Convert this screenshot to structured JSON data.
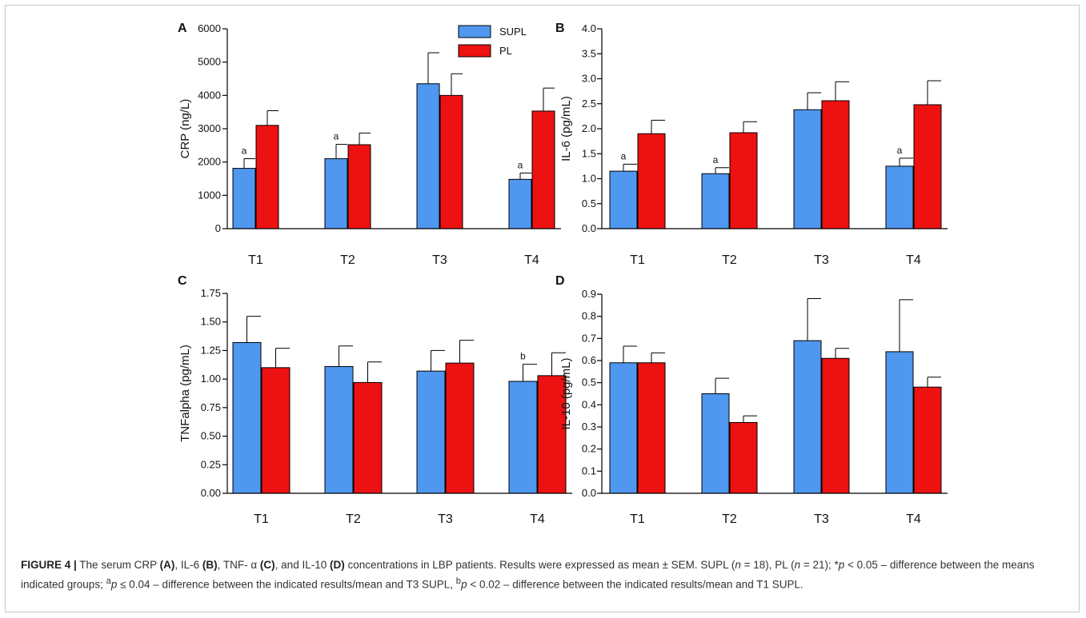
{
  "colors": {
    "supl": "#4f97ef",
    "pl": "#ee1111"
  },
  "legend": {
    "items": [
      {
        "label": "SUPL",
        "color": "#4f97ef"
      },
      {
        "label": "PL",
        "color": "#ee1111"
      }
    ]
  },
  "chart_data": [
    {
      "type": "bar",
      "panel": "A",
      "ylabel": "CRP (ng/L)",
      "categories": [
        "T1",
        "T2",
        "T3",
        "T4"
      ],
      "ylim": [
        0,
        6000
      ],
      "yticks": [
        "0",
        "1000",
        "2000",
        "3000",
        "4000",
        "5000",
        "6000"
      ],
      "series": [
        {
          "name": "SUPL",
          "values": [
            1810,
            2100,
            4350,
            1480
          ],
          "errors": [
            290,
            430,
            930,
            190
          ],
          "annotations": [
            "a",
            "a",
            "",
            "a"
          ]
        },
        {
          "name": "PL",
          "values": [
            3100,
            2520,
            4000,
            3530
          ],
          "errors": [
            440,
            350,
            650,
            690
          ],
          "annotations": [
            "",
            "",
            "",
            ""
          ]
        }
      ]
    },
    {
      "type": "bar",
      "panel": "B",
      "ylabel": "IL-6 (pg/mL)",
      "categories": [
        "T1",
        "T2",
        "T3",
        "T4"
      ],
      "ylim": [
        0,
        4
      ],
      "yticks": [
        "0.0",
        "0.5",
        "1.0",
        "1.5",
        "2.0",
        "2.5",
        "3.0",
        "3.5",
        "4.0"
      ],
      "series": [
        {
          "name": "SUPL",
          "values": [
            1.15,
            1.1,
            2.38,
            1.25
          ],
          "errors": [
            0.14,
            0.12,
            0.34,
            0.16
          ],
          "annotations": [
            "a",
            "a",
            "",
            "a"
          ]
        },
        {
          "name": "PL",
          "values": [
            1.9,
            1.92,
            2.56,
            2.48
          ],
          "errors": [
            0.27,
            0.22,
            0.38,
            0.48
          ],
          "annotations": [
            "",
            "",
            "",
            ""
          ]
        }
      ]
    },
    {
      "type": "bar",
      "panel": "C",
      "ylabel": "TNFalpha (pg/mL)",
      "categories": [
        "T1",
        "T2",
        "T3",
        "T4"
      ],
      "ylim": [
        0,
        1.75
      ],
      "yticks": [
        "0.00",
        "0.25",
        "0.50",
        "0.75",
        "1.00",
        "1.25",
        "1.50",
        "1.75"
      ],
      "series": [
        {
          "name": "SUPL",
          "values": [
            1.32,
            1.11,
            1.07,
            0.98
          ],
          "errors": [
            0.23,
            0.18,
            0.18,
            0.15
          ],
          "annotations": [
            "",
            "",
            "",
            "b"
          ]
        },
        {
          "name": "PL",
          "values": [
            1.1,
            0.97,
            1.14,
            1.03
          ],
          "errors": [
            0.17,
            0.18,
            0.2,
            0.2
          ],
          "annotations": [
            "",
            "",
            "",
            ""
          ]
        }
      ]
    },
    {
      "type": "bar",
      "panel": "D",
      "ylabel": "IL-10 (pg/mL)",
      "categories": [
        "T1",
        "T2",
        "T3",
        "T4"
      ],
      "ylim": [
        0,
        0.9
      ],
      "yticks": [
        "0.0",
        "0.1",
        "0.2",
        "0.3",
        "0.4",
        "0.5",
        "0.6",
        "0.7",
        "0.8",
        "0.9"
      ],
      "series": [
        {
          "name": "SUPL",
          "values": [
            0.59,
            0.45,
            0.69,
            0.64
          ],
          "errors": [
            0.075,
            0.07,
            0.19,
            0.235
          ],
          "annotations": [
            "",
            "",
            "",
            ""
          ]
        },
        {
          "name": "PL",
          "values": [
            0.59,
            0.32,
            0.61,
            0.48
          ],
          "errors": [
            0.045,
            0.03,
            0.045,
            0.045
          ],
          "annotations": [
            "",
            "",
            "",
            ""
          ]
        }
      ]
    }
  ],
  "caption": {
    "label": "FIGURE 4 |",
    "seg1": " The serum CRP ",
    "refA": "(A)",
    "seg2": ", IL-6 ",
    "refB": "(B)",
    "seg3": ", TNF- α ",
    "refC": "(C)",
    "seg4": ", and IL-10 ",
    "refD": "(D)",
    "seg5": " concentrations in LBP patients. Results were expressed as mean ± SEM. SUPL (",
    "n1": "n",
    "seg6": " = 18), PL (",
    "n2": "n",
    "seg7": " = 21); *",
    "p1": "p",
    "seg8": " < 0.05 – difference between the means indicated groups; ",
    "supA": "a",
    "p2": "p",
    "seg9": " ≤ 0.04 – difference between the indicated results/mean and T3 SUPL, ",
    "supB": "b",
    "p3": "p",
    "seg10": " < 0.02 – difference between the indicated results/mean and T1 SUPL."
  }
}
